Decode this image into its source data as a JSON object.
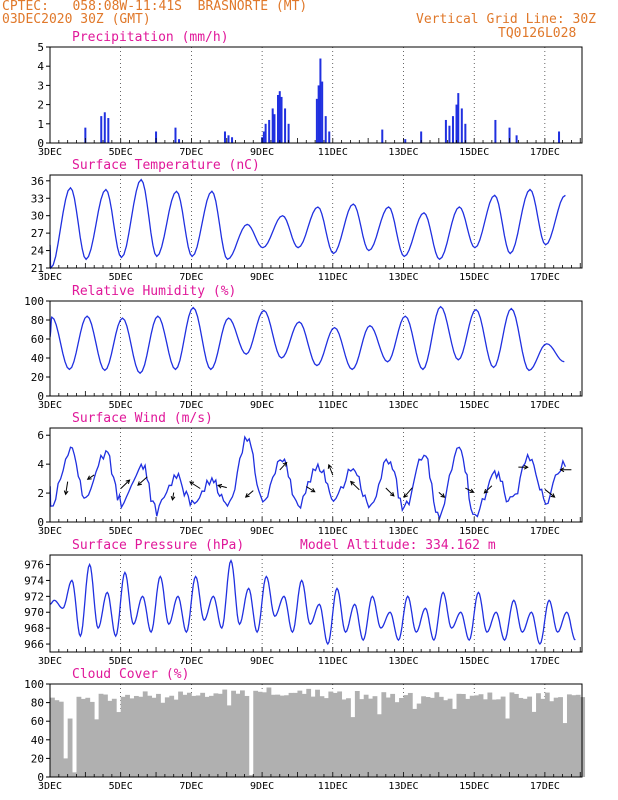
{
  "header": {
    "line1_left": "CPTEC:   058:08W-11:41S  BRASNORTE (MT)",
    "line2_left": "03DEC2020 30Z (GMT)",
    "line1_right": "Vertical Grid Line: 30Z",
    "line2_right": "TQ0126L028"
  },
  "colors": {
    "header_text": "#e0782a",
    "panel_title": "#e0189a",
    "series": "#2030e0",
    "cloud_fill": "#b0b0b0",
    "grid": "#000000"
  },
  "chart_data": [
    {
      "id": "precipitation",
      "type": "bar",
      "title": "Precipitation (mm/h)",
      "ylim": [
        0,
        5
      ],
      "yticks": [
        0,
        1,
        2,
        3,
        4,
        5
      ],
      "x_tick_labels": [
        "3DEC",
        "5DEC",
        "7DEC",
        "9DEC",
        "11DEC",
        "13DEC",
        "15DEC",
        "17DEC"
      ],
      "x_tick_days": [
        0,
        2,
        4,
        6,
        8,
        10,
        12,
        14
      ],
      "x_range_days": [
        0,
        15.05
      ],
      "grid": "vertical dotted",
      "events": [
        [
          1.0,
          0.8
        ],
        [
          1.45,
          1.4
        ],
        [
          1.55,
          1.6
        ],
        [
          1.65,
          1.3
        ],
        [
          3.0,
          0.6
        ],
        [
          3.55,
          0.8
        ],
        [
          3.65,
          0.2
        ],
        [
          4.95,
          0.6
        ],
        [
          5.05,
          0.4
        ],
        [
          5.15,
          0.3
        ],
        [
          6.0,
          0.3
        ],
        [
          6.05,
          0.6
        ],
        [
          6.1,
          1.0
        ],
        [
          6.2,
          1.2
        ],
        [
          6.3,
          1.8
        ],
        [
          6.35,
          1.5
        ],
        [
          6.45,
          2.5
        ],
        [
          6.5,
          2.7
        ],
        [
          6.55,
          2.4
        ],
        [
          6.65,
          1.8
        ],
        [
          6.75,
          1.0
        ],
        [
          7.55,
          2.3
        ],
        [
          7.6,
          3.0
        ],
        [
          7.65,
          4.4
        ],
        [
          7.7,
          3.2
        ],
        [
          7.8,
          1.4
        ],
        [
          7.9,
          0.6
        ],
        [
          9.4,
          0.7
        ],
        [
          10.05,
          0.2
        ],
        [
          10.5,
          0.6
        ],
        [
          11.2,
          1.2
        ],
        [
          11.3,
          0.9
        ],
        [
          11.4,
          1.4
        ],
        [
          11.5,
          2.0
        ],
        [
          11.55,
          2.6
        ],
        [
          11.65,
          1.8
        ],
        [
          11.75,
          1.0
        ],
        [
          12.6,
          1.2
        ],
        [
          13.0,
          0.8
        ],
        [
          13.2,
          0.4
        ],
        [
          14.4,
          0.6
        ]
      ]
    },
    {
      "id": "temperature",
      "type": "line",
      "title": "Surface Temperature (nC)",
      "ylim": [
        21,
        37
      ],
      "yticks": [
        21,
        24,
        27,
        30,
        33,
        36
      ],
      "x_tick_labels": [
        "3DEC",
        "5DEC",
        "7DEC",
        "9DEC",
        "11DEC",
        "13DEC",
        "15DEC",
        "17DEC"
      ],
      "x_tick_days": [
        0,
        2,
        4,
        6,
        8,
        10,
        12,
        14
      ],
      "x_range_days": [
        0,
        15.05
      ],
      "grid": "vertical dotted",
      "daily_max": [
        34.8,
        34.5,
        36.2,
        34.2,
        34.2,
        28.5,
        30.0,
        31.5,
        32.0,
        31.5,
        30.5,
        31.5,
        33.5,
        34.5,
        33.5
      ],
      "daily_min": [
        21.0,
        22.5,
        22.8,
        23.0,
        23.0,
        22.5,
        24.5,
        24.5,
        23.5,
        24.0,
        23.0,
        22.5,
        24.5,
        23.5,
        25.0
      ]
    },
    {
      "id": "humidity",
      "type": "line",
      "title": "Relative Humidity (%)",
      "ylim": [
        0,
        100
      ],
      "yticks": [
        0,
        20,
        40,
        60,
        80,
        100
      ],
      "x_tick_labels": [
        "3DEC",
        "5DEC",
        "7DEC",
        "9DEC",
        "11DEC",
        "13DEC",
        "15DEC",
        "17DEC"
      ],
      "x_tick_days": [
        0,
        2,
        4,
        6,
        8,
        10,
        12,
        14
      ],
      "x_range_days": [
        0,
        15.05
      ],
      "grid": "vertical dotted",
      "daily_max": [
        83,
        84,
        82,
        84,
        93,
        82,
        90,
        78,
        72,
        74,
        84,
        94,
        91,
        92,
        55
      ],
      "daily_min": [
        28,
        27,
        24,
        28,
        28,
        44,
        40,
        32,
        28,
        36,
        28,
        38,
        30,
        27,
        36
      ]
    },
    {
      "id": "wind",
      "type": "line",
      "title": "Surface Wind (m/s)",
      "ylim": [
        0,
        6.5
      ],
      "yticks": [
        0,
        2,
        4,
        6
      ],
      "x_tick_labels": [
        "3DEC",
        "5DEC",
        "7DEC",
        "9DEC",
        "11DEC",
        "13DEC",
        "15DEC",
        "17DEC"
      ],
      "x_tick_days": [
        0,
        2,
        4,
        6,
        8,
        10,
        12,
        14
      ],
      "x_range_days": [
        0,
        15.05
      ],
      "grid": "vertical dotted",
      "daily_max": [
        5.0,
        4.7,
        4.0,
        3.2,
        3.0,
        5.8,
        4.3,
        4.0,
        3.6,
        4.2,
        4.6,
        5.4,
        3.4,
        4.4,
        4.2
      ],
      "daily_min": [
        1.2,
        1.7,
        1.4,
        0.8,
        1.2,
        1.0,
        1.2,
        1.2,
        1.5,
        1.1,
        1.0,
        0.4,
        0.4,
        1.4,
        1.5
      ]
    },
    {
      "id": "pressure",
      "type": "line",
      "title": "Surface Pressure (hPa)",
      "annotation": "Model Altitude: 334.162 m",
      "ylim": [
        965,
        977.2
      ],
      "yticks": [
        966,
        968,
        970,
        972,
        974,
        976
      ],
      "x_tick_labels": [
        "3DEC",
        "5DEC",
        "7DEC",
        "9DEC",
        "11DEC",
        "13DEC",
        "15DEC",
        "17DEC"
      ],
      "x_tick_days": [
        0,
        2,
        4,
        6,
        8,
        10,
        12,
        14
      ],
      "x_range_days": [
        0,
        15.05
      ],
      "grid": "vertical dotted",
      "half_day_max": [
        971.5,
        974.0,
        976.0,
        972.5,
        975.0,
        972.0,
        974.5,
        972.0,
        974.5,
        972.0,
        976.5,
        973.0,
        974.5,
        972.0,
        974.0,
        971.0,
        973.0,
        971.0,
        972.0,
        970.0,
        972.0,
        970.5,
        972.5,
        970.0,
        972.5,
        970.0,
        971.5,
        970.0,
        971.5,
        970.0
      ],
      "half_day_min": [
        970.5,
        967.0,
        968.0,
        967.0,
        968.5,
        967.5,
        968.5,
        967.5,
        969.0,
        968.0,
        968.5,
        967.5,
        969.5,
        967.5,
        968.5,
        966.0,
        967.5,
        966.5,
        968.0,
        966.5,
        967.5,
        966.5,
        968.0,
        966.5,
        967.5,
        966.5,
        967.5,
        966.0,
        967.5,
        966.5
      ]
    },
    {
      "id": "cloud",
      "type": "bar",
      "title": "Cloud Cover (%)",
      "ylim": [
        0,
        100
      ],
      "yticks": [
        0,
        20,
        40,
        60,
        80,
        100
      ],
      "x_tick_labels": [
        "3DEC",
        "5DEC",
        "7DEC",
        "9DEC",
        "11DEC",
        "13DEC",
        "15DEC",
        "17DEC"
      ],
      "x_tick_days": [
        0,
        2,
        4,
        6,
        8,
        10,
        12,
        14
      ],
      "x_range_days": [
        0,
        15.05
      ],
      "grid": "vertical dotted",
      "daily_mean": [
        88,
        90,
        93,
        93,
        95,
        96,
        97,
        95,
        93,
        92,
        94,
        91,
        93,
        93,
        91
      ],
      "deep_gaps": [
        [
          0.35,
          20
        ],
        [
          0.6,
          5
        ],
        [
          5.65,
          2
        ],
        [
          13.6,
          70
        ],
        [
          14.55,
          58
        ]
      ]
    }
  ]
}
